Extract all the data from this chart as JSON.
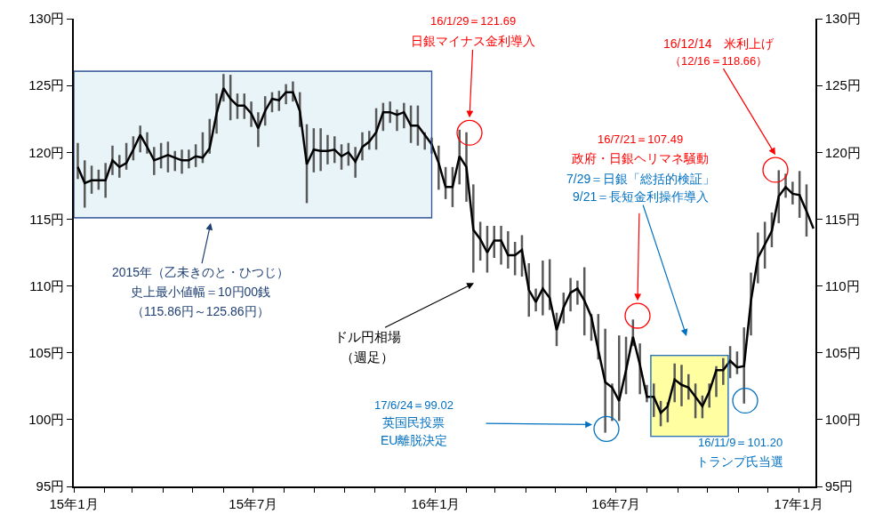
{
  "chart_data": {
    "type": "line",
    "x": [
      "2015-01-05",
      "2015-01-12",
      "2015-01-19",
      "2015-01-26",
      "2015-02-02",
      "2015-02-09",
      "2015-02-16",
      "2015-02-23",
      "2015-03-02",
      "2015-03-09",
      "2015-03-16",
      "2015-03-23",
      "2015-03-30",
      "2015-04-06",
      "2015-04-13",
      "2015-04-20",
      "2015-04-27",
      "2015-05-04",
      "2015-05-11",
      "2015-05-18",
      "2015-05-25",
      "2015-06-01",
      "2015-06-08",
      "2015-06-15",
      "2015-06-22",
      "2015-06-29",
      "2015-07-06",
      "2015-07-13",
      "2015-07-20",
      "2015-07-27",
      "2015-08-03",
      "2015-08-10",
      "2015-08-17",
      "2015-08-24",
      "2015-08-31",
      "2015-09-07",
      "2015-09-14",
      "2015-09-21",
      "2015-09-28",
      "2015-10-05",
      "2015-10-12",
      "2015-10-19",
      "2015-10-26",
      "2015-11-02",
      "2015-11-09",
      "2015-11-16",
      "2015-11-23",
      "2015-11-30",
      "2015-12-07",
      "2015-12-14",
      "2015-12-21",
      "2015-12-28",
      "2016-01-04",
      "2016-01-11",
      "2016-01-18",
      "2016-01-25",
      "2016-02-01",
      "2016-02-08",
      "2016-02-15",
      "2016-02-22",
      "2016-02-29",
      "2016-03-07",
      "2016-03-14",
      "2016-03-21",
      "2016-03-28",
      "2016-04-04",
      "2016-04-11",
      "2016-04-18",
      "2016-04-25",
      "2016-05-02",
      "2016-05-09",
      "2016-05-16",
      "2016-05-23",
      "2016-05-30",
      "2016-06-06",
      "2016-06-13",
      "2016-06-20",
      "2016-06-27",
      "2016-07-04",
      "2016-07-11",
      "2016-07-18",
      "2016-07-25",
      "2016-08-01",
      "2016-08-08",
      "2016-08-15",
      "2016-08-22",
      "2016-08-29",
      "2016-09-05",
      "2016-09-12",
      "2016-09-19",
      "2016-09-26",
      "2016-10-03",
      "2016-10-10",
      "2016-10-17",
      "2016-10-24",
      "2016-10-31",
      "2016-11-07",
      "2016-11-14",
      "2016-11-21",
      "2016-11-28",
      "2016-12-05",
      "2016-12-12",
      "2016-12-19",
      "2016-12-26",
      "2017-01-02",
      "2017-01-09",
      "2017-01-16"
    ],
    "series": [
      {
        "color": "#000000",
        "values": [
          118.9,
          117.7,
          117.9,
          117.9,
          117.9,
          119.4,
          118.9,
          119.2,
          120.2,
          121.3,
          120.4,
          119.4,
          119.6,
          119.8,
          119.6,
          119.4,
          119.4,
          119.7,
          119.6,
          120.3,
          122.9,
          124.8,
          124.0,
          123.5,
          123.5,
          122.9,
          121.8,
          123.1,
          124.0,
          123.9,
          124.5,
          124.5,
          123.1,
          119.1,
          120.2,
          120.1,
          120.1,
          120.2,
          119.7,
          120.0,
          119.3,
          120.4,
          120.8,
          121.5,
          123.0,
          123.0,
          122.8,
          123.0,
          122.0,
          122.0,
          121.3,
          120.6,
          119.2,
          117.4,
          117.4,
          119.7,
          118.9,
          114.2,
          113.5,
          112.5,
          113.4,
          113.4,
          112.3,
          112.3,
          112.7,
          109.7,
          108.8,
          109.8,
          109.1,
          106.7,
          108.4,
          109.5,
          109.8,
          108.9,
          107.7,
          105.2,
          102.8,
          102.4,
          101.4,
          103.7,
          106.2,
          104.1,
          101.7,
          101.7,
          100.5,
          101.0,
          103.0,
          102.6,
          102.4,
          101.7,
          101.0,
          102.1,
          103.7,
          103.7,
          104.4,
          103.9,
          104.0,
          108.9,
          112.1,
          113.1,
          114.1,
          116.7,
          117.4,
          116.9,
          116.8,
          115.6,
          114.3
        ],
        "errors": [
          [
            118.0,
            120.7
          ],
          [
            115.86,
            119.4
          ],
          [
            116.9,
            119.0
          ],
          [
            117.2,
            118.7
          ],
          [
            116.6,
            119.2
          ],
          [
            118.3,
            120.5
          ],
          [
            118.1,
            119.8
          ],
          [
            118.7,
            120.7
          ],
          [
            119.4,
            121.2
          ],
          [
            120.0,
            122.0
          ],
          [
            119.9,
            121.5
          ],
          [
            118.3,
            120.4
          ],
          [
            118.8,
            120.7
          ],
          [
            118.5,
            120.8
          ],
          [
            118.6,
            120.1
          ],
          [
            118.4,
            120.2
          ],
          [
            118.8,
            120.2
          ],
          [
            118.9,
            120.6
          ],
          [
            119.2,
            121.5
          ],
          [
            119.9,
            122.5
          ],
          [
            121.4,
            124.4
          ],
          [
            123.8,
            125.86
          ],
          [
            122.4,
            125.8
          ],
          [
            122.5,
            124.4
          ],
          [
            122.5,
            124.4
          ],
          [
            121.9,
            123.8
          ],
          [
            120.4,
            123.0
          ],
          [
            122.0,
            124.2
          ],
          [
            123.0,
            124.5
          ],
          [
            123.1,
            124.6
          ],
          [
            123.6,
            125.1
          ],
          [
            123.8,
            125.3
          ],
          [
            121.9,
            124.5
          ],
          [
            116.2,
            122.1
          ],
          [
            118.5,
            121.8
          ],
          [
            118.6,
            121.8
          ],
          [
            119.1,
            121.3
          ],
          [
            119.2,
            121.2
          ],
          [
            118.7,
            120.6
          ],
          [
            119.0,
            120.7
          ],
          [
            118.1,
            120.4
          ],
          [
            119.4,
            121.5
          ],
          [
            120.2,
            121.6
          ],
          [
            120.2,
            123.3
          ],
          [
            121.6,
            123.7
          ],
          [
            122.2,
            123.8
          ],
          [
            121.6,
            123.2
          ],
          [
            121.8,
            123.7
          ],
          [
            120.7,
            123.5
          ],
          [
            120.5,
            123.5
          ],
          [
            120.2,
            121.5
          ],
          [
            119.9,
            121.1
          ],
          [
            117.2,
            120.5
          ],
          [
            116.5,
            118.9
          ],
          [
            115.9,
            118.9
          ],
          [
            117.6,
            121.69
          ],
          [
            116.3,
            121.5
          ],
          [
            111.0,
            117.6
          ],
          [
            111.9,
            114.8
          ],
          [
            111.0,
            114.5
          ],
          [
            112.1,
            114.5
          ],
          [
            111.6,
            114.5
          ],
          [
            111.3,
            114.1
          ],
          [
            110.8,
            113.3
          ],
          [
            110.7,
            113.8
          ],
          [
            107.7,
            111.7
          ],
          [
            108.1,
            109.8
          ],
          [
            107.8,
            111.9
          ],
          [
            108.2,
            112.0
          ],
          [
            105.5,
            108.0
          ],
          [
            107.2,
            109.5
          ],
          [
            108.1,
            110.6
          ],
          [
            108.6,
            110.4
          ],
          [
            106.3,
            111.4
          ],
          [
            105.9,
            107.9
          ],
          [
            104.5,
            107.9
          ],
          [
            99.02,
            106.8
          ],
          [
            99.9,
            102.7
          ],
          [
            99.9,
            106.3
          ],
          [
            101.9,
            106.2
          ],
          [
            105.5,
            107.49
          ],
          [
            101.9,
            105.7
          ],
          [
            101.3,
            102.6
          ],
          [
            100.2,
            102.7
          ],
          [
            99.5,
            101.4
          ],
          [
            99.8,
            101.3
          ],
          [
            101.3,
            104.2
          ],
          [
            101.0,
            104.1
          ],
          [
            101.5,
            103.4
          ],
          [
            100.1,
            102.7
          ],
          [
            100.1,
            101.8
          ],
          [
            100.9,
            102.7
          ],
          [
            101.7,
            104.0
          ],
          [
            102.6,
            104.6
          ],
          [
            103.1,
            105.5
          ],
          [
            103.4,
            105.1
          ],
          [
            101.2,
            106.9
          ],
          [
            106.3,
            111.0
          ],
          [
            110.2,
            114.0
          ],
          [
            111.3,
            114.8
          ],
          [
            112.9,
            115.5
          ],
          [
            114.7,
            118.66
          ],
          [
            116.6,
            118.4
          ],
          [
            116.1,
            117.8
          ],
          [
            115.1,
            118.6
          ],
          [
            113.7,
            117.6
          ],
          null
        ]
      }
    ],
    "xlim": [
      "2015-01-01",
      "2017-01-18"
    ],
    "xticks": [
      {
        "value": "2015-01-01",
        "label": "15年1月"
      },
      {
        "value": "2015-02-01",
        "label": null
      },
      {
        "value": "2015-03-01",
        "label": null
      },
      {
        "value": "2015-04-01",
        "label": null
      },
      {
        "value": "2015-05-01",
        "label": null
      },
      {
        "value": "2015-06-01",
        "label": null
      },
      {
        "value": "2015-07-01",
        "label": "15年7月"
      },
      {
        "value": "2015-08-01",
        "label": null
      },
      {
        "value": "2015-09-01",
        "label": null
      },
      {
        "value": "2015-10-01",
        "label": null
      },
      {
        "value": "2015-11-01",
        "label": null
      },
      {
        "value": "2015-12-01",
        "label": null
      },
      {
        "value": "2016-01-01",
        "label": "16年1月"
      },
      {
        "value": "2016-02-01",
        "label": null
      },
      {
        "value": "2016-03-01",
        "label": null
      },
      {
        "value": "2016-04-01",
        "label": null
      },
      {
        "value": "2016-05-01",
        "label": null
      },
      {
        "value": "2016-06-01",
        "label": null
      },
      {
        "value": "2016-07-01",
        "label": "16年7月"
      },
      {
        "value": "2016-08-01",
        "label": null
      },
      {
        "value": "2016-09-01",
        "label": null
      },
      {
        "value": "2016-10-01",
        "label": null
      },
      {
        "value": "2016-11-01",
        "label": null
      },
      {
        "value": "2016-12-01",
        "label": null
      },
      {
        "value": "2017-01-01",
        "label": "17年1月"
      }
    ],
    "ylim": [
      95,
      130
    ],
    "yticks": [
      {
        "value": 95,
        "label": "95円"
      },
      {
        "value": 100,
        "label": "100円"
      },
      {
        "value": 105,
        "label": "105円"
      },
      {
        "value": 110,
        "label": "110円"
      },
      {
        "value": 115,
        "label": "115円"
      },
      {
        "value": 120,
        "label": "120円"
      },
      {
        "value": 125,
        "label": "125円"
      },
      {
        "value": 130,
        "label": "130円"
      }
    ],
    "y2lim": [
      95,
      130
    ],
    "y2ticks": [
      {
        "value": 95,
        "label": "95円"
      },
      {
        "value": 100,
        "label": "100円"
      },
      {
        "value": 105,
        "label": "105円"
      },
      {
        "value": 110,
        "label": "110円"
      },
      {
        "value": 115,
        "label": "115円"
      },
      {
        "value": 120,
        "label": "120円"
      },
      {
        "value": 125,
        "label": "125円"
      },
      {
        "value": 130,
        "label": "130円"
      }
    ],
    "bands": [
      {
        "axis": "x",
        "from": "2015-01-01",
        "to": "2015-12-28",
        "color": "#dbeef4"
      },
      {
        "axis": "x",
        "from": "2016-08-05",
        "to": "2016-10-22",
        "color": "#ffff66"
      }
    ],
    "annotations": [
      "16/1/29＝121.69",
      "日銀マイナス金利導入",
      "16/12/14　米利上げ",
      "（12/16＝118.66）",
      "16/7/21＝107.49",
      "政府・日銀ヘリマネ騒動",
      "7/29＝日銀「総括的検証」",
      "9/21＝長短金利操作導入",
      "17/6/24＝99.02",
      "英国民投票",
      "EU離脱決定",
      "16/11/9＝101.20",
      "トランプ氏当選",
      "2015年（乙未きのと・ひつじ）",
      "史上最小値幅＝10円00銭",
      "（115.86円～125.86円）",
      "ドル円相場",
      "（週足）"
    ],
    "grid": false
  }
}
